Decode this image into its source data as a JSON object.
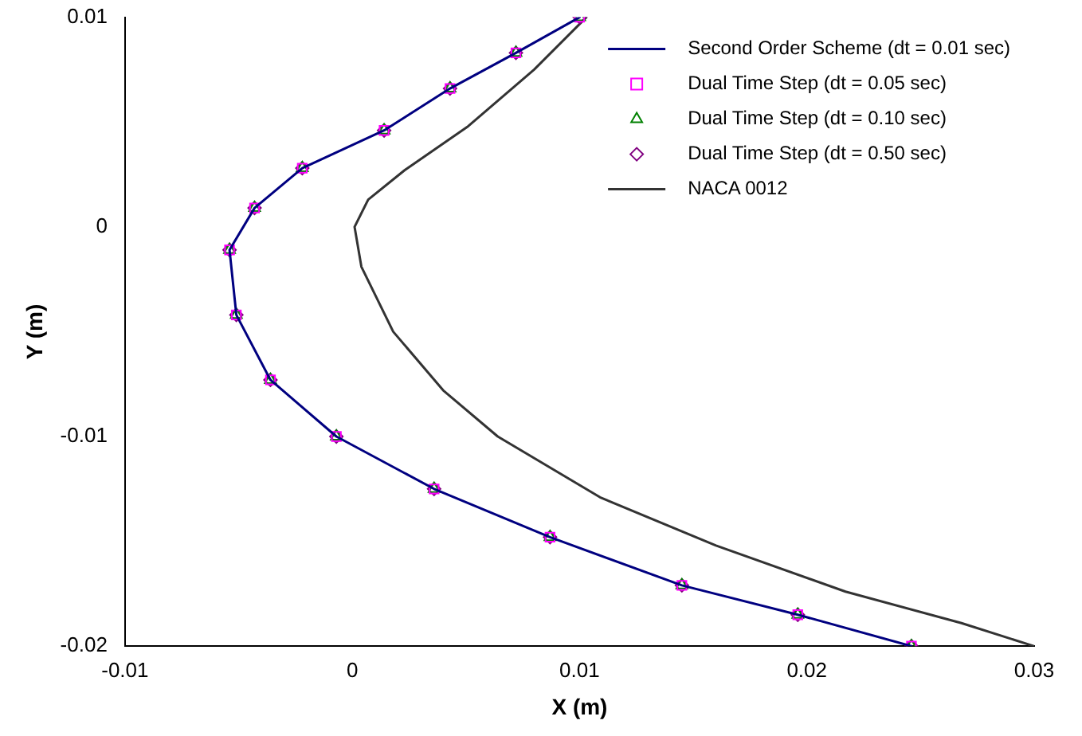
{
  "chart_data": {
    "type": "line",
    "xlabel": "X (m)",
    "ylabel": "Y (m)",
    "xlim": [
      -0.01,
      0.03
    ],
    "ylim": [
      -0.02,
      0.01
    ],
    "xticks": [
      -0.01,
      0,
      0.01,
      0.02,
      0.03
    ],
    "yticks": [
      -0.02,
      -0.01,
      0,
      0.01
    ],
    "grid": false,
    "legend": "top right",
    "series": [
      {
        "name": "Second Order Scheme (dt = 0.01 sec)",
        "color": "#000080",
        "marker": "none",
        "x": [
          0.01,
          0.0072,
          0.0043,
          0.0014,
          -0.0022,
          -0.0043,
          -0.0054,
          -0.0051,
          -0.0036,
          -0.0007,
          0.0036,
          0.0087,
          0.0145,
          0.0196,
          0.0246
        ],
        "values": [
          0.01,
          0.0083,
          0.0066,
          0.0046,
          0.0028,
          0.0009,
          -0.0011,
          -0.0042,
          -0.0073,
          -0.01,
          -0.0125,
          -0.0148,
          -0.0171,
          -0.0185,
          -0.02
        ]
      },
      {
        "name": "Dual Time Step (dt = 0.05 sec)",
        "type": "scatter",
        "color": "#ff00ff",
        "marker": "square",
        "x": [
          0.01,
          0.0072,
          0.0043,
          0.0014,
          -0.0022,
          -0.0043,
          -0.0054,
          -0.0051,
          -0.0036,
          -0.0007,
          0.0036,
          0.0087,
          0.0145,
          0.0196,
          0.0246
        ],
        "values": [
          0.01,
          0.0083,
          0.0066,
          0.0046,
          0.0028,
          0.0009,
          -0.0011,
          -0.0042,
          -0.0073,
          -0.01,
          -0.0125,
          -0.0148,
          -0.0171,
          -0.0185,
          -0.02
        ]
      },
      {
        "name": "Dual Time Step (dt = 0.10 sec)",
        "type": "scatter",
        "color": "#008000",
        "marker": "triangle",
        "x": [
          0.01,
          0.0072,
          0.0043,
          0.0014,
          -0.0022,
          -0.0043,
          -0.0054,
          -0.0051,
          -0.0036,
          -0.0007,
          0.0036,
          0.0087,
          0.0145,
          0.0196,
          0.0246
        ],
        "values": [
          0.01,
          0.0083,
          0.0066,
          0.0046,
          0.0028,
          0.0009,
          -0.0011,
          -0.0042,
          -0.0073,
          -0.01,
          -0.0125,
          -0.0148,
          -0.0171,
          -0.0185,
          -0.02
        ]
      },
      {
        "name": "Dual Time Step (dt = 0.50 sec)",
        "type": "scatter",
        "color": "#800080",
        "marker": "diamond",
        "x": [
          0.01,
          0.0072,
          0.0043,
          0.0014,
          -0.0022,
          -0.0043,
          -0.0054,
          -0.0051,
          -0.0036,
          -0.0007,
          0.0036,
          0.0087,
          0.0145,
          0.0196,
          0.0246
        ],
        "values": [
          0.01,
          0.0083,
          0.0066,
          0.0046,
          0.0028,
          0.0009,
          -0.0011,
          -0.0042,
          -0.0073,
          -0.01,
          -0.0125,
          -0.0148,
          -0.0171,
          -0.0185,
          -0.02
        ]
      },
      {
        "name": "NACA 0012",
        "color": "#333333",
        "marker": "none",
        "x": [
          0.0103,
          0.008,
          0.0051,
          0.0023,
          0.0007,
          0.0001,
          0.0004,
          0.0018,
          0.004,
          0.0064,
          0.0109,
          0.016,
          0.0217,
          0.0268,
          0.03
        ],
        "values": [
          0.01,
          0.0075,
          0.0048,
          0.0027,
          0.0013,
          0,
          -0.0019,
          -0.005,
          -0.0078,
          -0.01,
          -0.0129,
          -0.0152,
          -0.0174,
          -0.0189,
          -0.02
        ]
      }
    ]
  }
}
